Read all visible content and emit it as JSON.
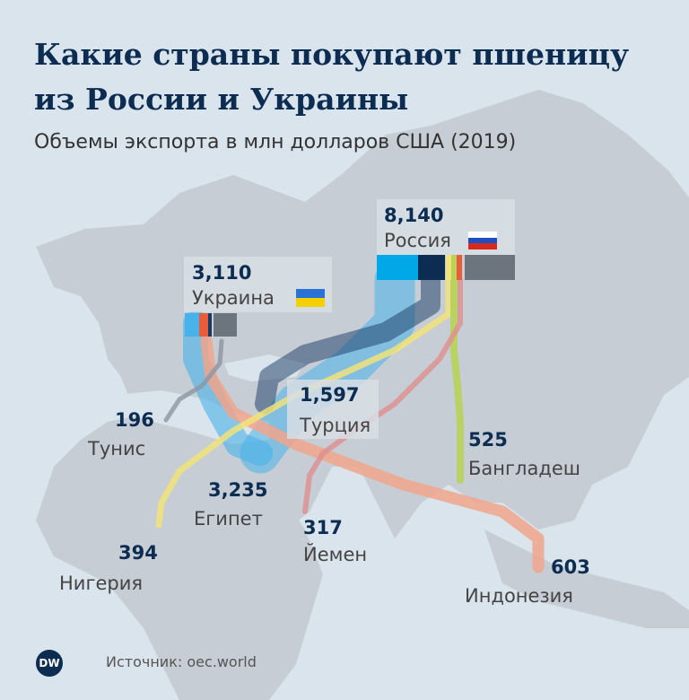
{
  "header": {
    "title": "Какие страны покупают пшеницу из России и Украины",
    "subtitle": "Объемы экспорта в млн долларов США (2019)"
  },
  "exporters": {
    "russia": {
      "name": "Россия",
      "value": "8,140"
    },
    "ukraine": {
      "name": "Украина",
      "value": "3,110"
    }
  },
  "importers": [
    {
      "name": "Турция",
      "value": "1,597"
    },
    {
      "name": "Египет",
      "value": "3,235"
    },
    {
      "name": "Тунис",
      "value": "196"
    },
    {
      "name": "Нигерия",
      "value": "394"
    },
    {
      "name": "Йемен",
      "value": "317"
    },
    {
      "name": "Бангладеш",
      "value": "525"
    },
    {
      "name": "Индонезия",
      "value": "603"
    }
  ],
  "colors": {
    "egypt": "#49b2ea",
    "turkey": "#193a63",
    "indonesia": "#f0a48c",
    "nigeria": "#f1e27a",
    "bangladesh": "#b8d156",
    "yemen": "#e08f8f",
    "tunisia": "#8a96a1",
    "other": "#6c757d",
    "land": "#c7ced5",
    "sea": "#d9e4ec",
    "title_color": "#0c2c52"
  },
  "footer": {
    "logo": "DW",
    "source": "Источник: oec.world"
  }
}
